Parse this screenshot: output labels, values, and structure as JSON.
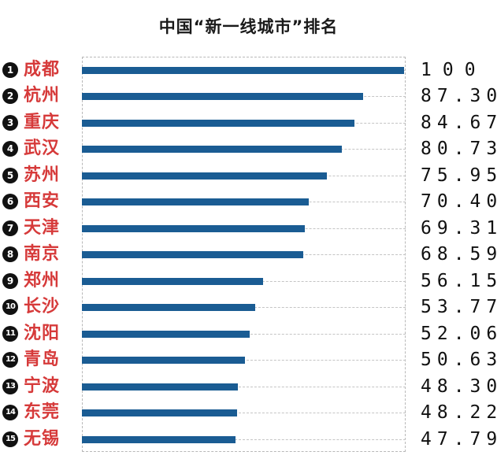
{
  "chart_data": {
    "type": "bar",
    "orientation": "horizontal",
    "title": "中国“新一线城市”排名",
    "xlim": [
      0,
      100
    ],
    "categories": [
      "成都",
      "杭州",
      "重庆",
      "武汉",
      "苏州",
      "西安",
      "天津",
      "南京",
      "郑州",
      "长沙",
      "沈阳",
      "青岛",
      "宁波",
      "东莞",
      "无锡"
    ],
    "ranks": [
      "1",
      "2",
      "3",
      "4",
      "5",
      "6",
      "7",
      "8",
      "9",
      "10",
      "11",
      "12",
      "13",
      "14",
      "15"
    ],
    "values": [
      100,
      87.3,
      84.67,
      80.73,
      75.95,
      70.4,
      69.31,
      68.59,
      56.15,
      53.77,
      52.06,
      50.63,
      48.3,
      48.22,
      47.79
    ],
    "value_labels": [
      "100",
      "87.30",
      "84.67",
      "80.73",
      "75.95",
      "70.40",
      "69.31",
      "68.59",
      "56.15",
      "53.77",
      "52.06",
      "50.63",
      "48.30",
      "48.22",
      "47.79"
    ],
    "colors": {
      "bar": "#1a5c93",
      "city": "#d63a3a",
      "badge": "#111111"
    }
  }
}
